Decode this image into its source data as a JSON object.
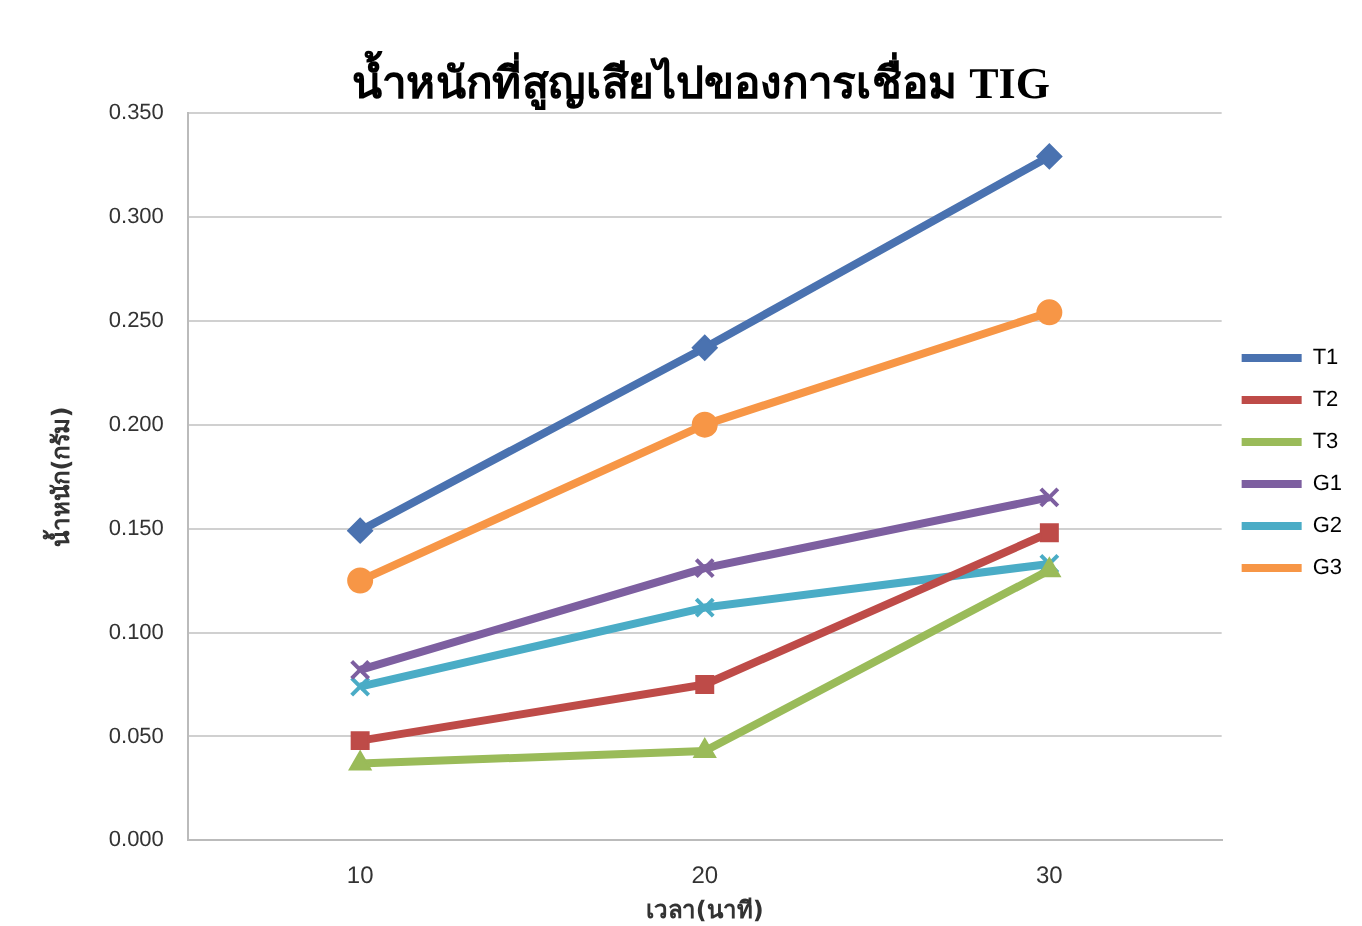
{
  "chart_data": {
    "type": "line",
    "title": "น้ำหนักที่สูญเสียไปของการเชื่อม TIG",
    "xlabel": "เวลา(นาที)",
    "ylabel": "น้ำหนัก(กรัม)",
    "categories": [
      "10",
      "20",
      "30"
    ],
    "series": [
      {
        "name": "T1",
        "color": "#4a72b0",
        "marker": "diamond",
        "values": [
          0.149,
          0.237,
          0.329
        ]
      },
      {
        "name": "T2",
        "color": "#be4b48",
        "marker": "square",
        "values": [
          0.048,
          0.075,
          0.148
        ]
      },
      {
        "name": "T3",
        "color": "#9abb59",
        "marker": "triangle",
        "values": [
          0.037,
          0.043,
          0.13
        ]
      },
      {
        "name": "G1",
        "color": "#7d5fa0",
        "marker": "cross",
        "values": [
          0.082,
          0.131,
          0.165
        ]
      },
      {
        "name": "G2",
        "color": "#4aacc6",
        "marker": "cross",
        "values": [
          0.074,
          0.112,
          0.133
        ]
      },
      {
        "name": "G3",
        "color": "#f79646",
        "marker": "circle",
        "values": [
          0.125,
          0.2,
          0.254
        ]
      }
    ],
    "ylim": [
      0,
      0.35
    ],
    "yticks": [
      {
        "value": 0,
        "label": "0.000"
      },
      {
        "value": 0.05,
        "label": "0.050"
      },
      {
        "value": 0.1,
        "label": "0.100"
      },
      {
        "value": 0.15,
        "label": "0.150"
      },
      {
        "value": 0.2,
        "label": "0.200"
      },
      {
        "value": 0.25,
        "label": "0.250"
      },
      {
        "value": 0.3,
        "label": "0.300"
      },
      {
        "value": 0.35,
        "label": "0.350"
      }
    ],
    "grid": "y",
    "legend": "right",
    "line_style": "solid"
  }
}
